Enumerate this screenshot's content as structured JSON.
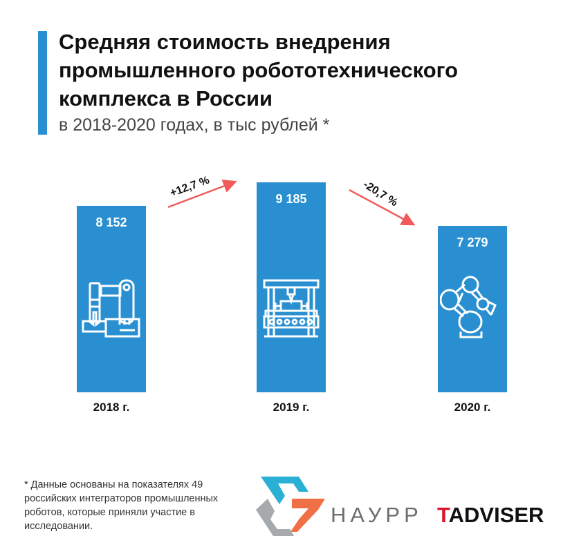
{
  "title": "Средняя стоимость внедрения промышленного робототехнического комплекса в России",
  "subtitle": "в 2018-2020 годах, в тыс рублей *",
  "chart_data": {
    "type": "bar",
    "categories": [
      "2018 г.",
      "2019 г.",
      "2020 г."
    ],
    "values": [
      8152,
      9185,
      7279
    ],
    "value_labels": [
      "8 152",
      "9 185",
      "7 279"
    ],
    "ylim": [
      0,
      9185
    ],
    "changes": [
      {
        "label": "+12,7 %",
        "direction": "up"
      },
      {
        "label": "-20,7 %",
        "direction": "down"
      }
    ],
    "bar_color": "#2a8fd0",
    "arrow_color": "#f05a5a",
    "icons": [
      "robot-arm-gantry-icon",
      "cnc-machine-icon",
      "articulated-robot-icon"
    ]
  },
  "footnote": "* Данные основаны на показателях 49 российских интеграторов промышленных роботов, которые приняли участие в исследовании.",
  "logos": {
    "naurr": "НАУРР",
    "tadviser_t": "T",
    "tadviser_rest": "ADVISER"
  }
}
